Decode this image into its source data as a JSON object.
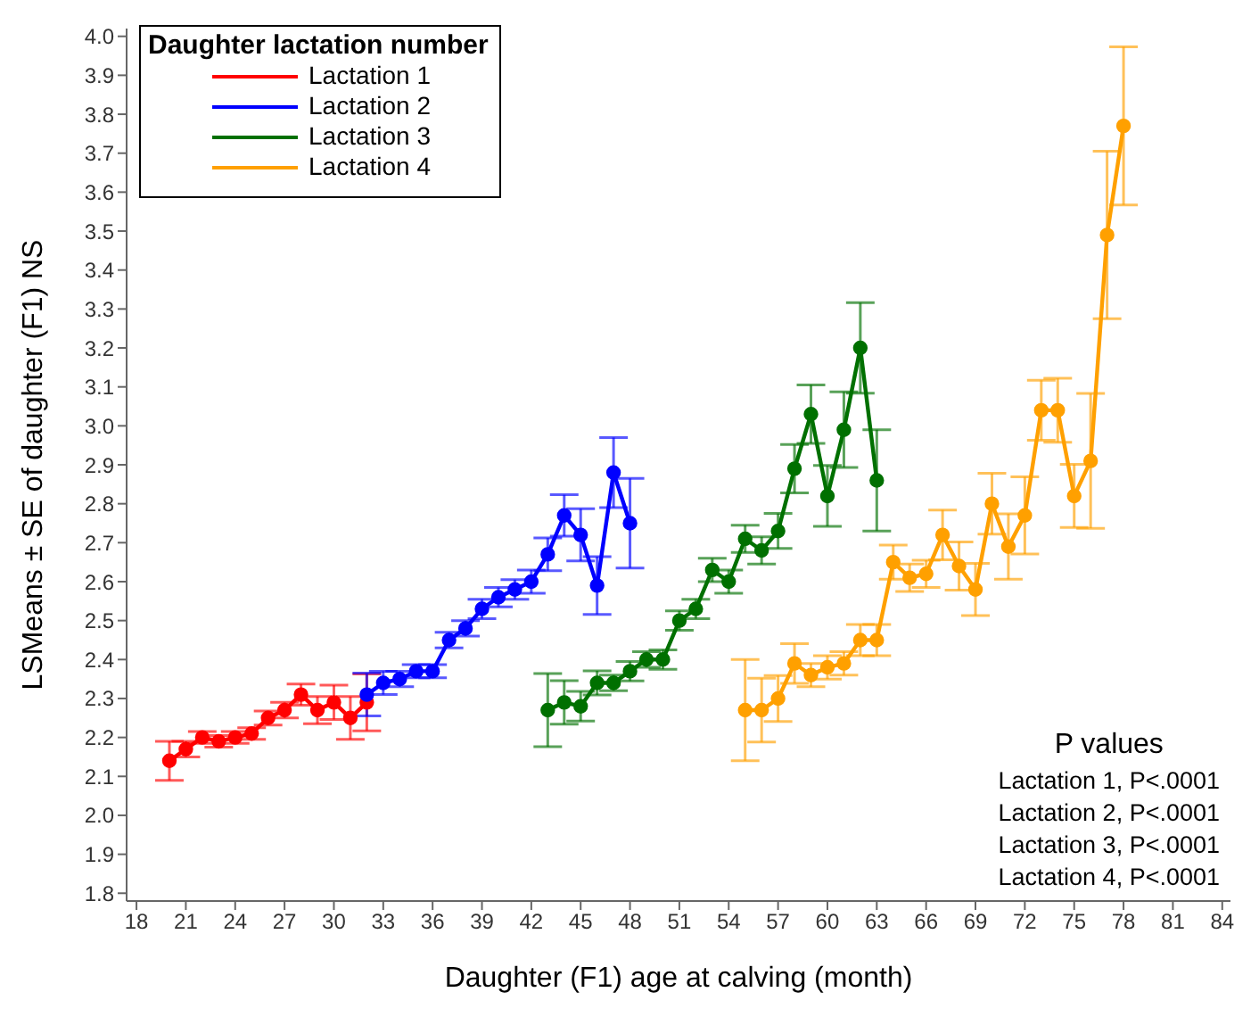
{
  "chart_data": {
    "type": "line",
    "xlabel": "Daughter (F1) age at calving (month)",
    "ylabel": "LSMeans ± SE of daughter (F1) NS",
    "legend_title": "Daughter lactation number",
    "legend": "top left",
    "marker": "circle",
    "line_style": "solid",
    "grid": false,
    "xlim": [
      17.4,
      84.5
    ],
    "xticks": [
      18,
      21,
      24,
      27,
      30,
      33,
      36,
      39,
      42,
      45,
      48,
      51,
      54,
      57,
      60,
      63,
      66,
      69,
      72,
      75,
      78,
      81,
      84
    ],
    "ylim": [
      1.78,
      4.02
    ],
    "yticks": [
      1.8,
      1.9,
      {
        "value": 2,
        "label": "2.0"
      },
      2.1,
      2.2,
      2.3,
      2.4,
      2.5,
      2.6,
      2.7,
      2.8,
      2.9,
      {
        "value": 3,
        "label": "3.0"
      },
      3.1,
      3.2,
      3.3,
      3.4,
      3.5,
      3.6,
      3.7,
      3.8,
      3.9,
      {
        "value": 4,
        "label": "4.0"
      }
    ],
    "series": [
      {
        "name": "Lactation 1",
        "color": "#ff0000",
        "x": [
          20,
          21,
          22,
          23,
          24,
          25,
          26,
          27,
          28,
          29,
          30,
          31,
          32
        ],
        "values": [
          2.14,
          2.17,
          2.2,
          2.19,
          2.2,
          2.21,
          2.25,
          2.27,
          2.31,
          2.27,
          2.29,
          2.25,
          2.29
        ],
        "errors": [
          0.05,
          0.02,
          0.015,
          0.015,
          0.015,
          0.015,
          0.018,
          0.02,
          0.027,
          0.035,
          0.044,
          0.055,
          0.073
        ]
      },
      {
        "name": "Lactation 2",
        "color": "#0000ff",
        "x": [
          32,
          33,
          34,
          35,
          36,
          37,
          38,
          39,
          40,
          41,
          42,
          43,
          44,
          45,
          46,
          47,
          48
        ],
        "values": [
          2.31,
          2.34,
          2.35,
          2.37,
          2.37,
          2.45,
          2.48,
          2.53,
          2.56,
          2.58,
          2.6,
          2.67,
          2.77,
          2.72,
          2.59,
          2.88,
          2.75
        ],
        "errors": [
          0.055,
          0.03,
          0.02,
          0.017,
          0.017,
          0.02,
          0.02,
          0.025,
          0.025,
          0.025,
          0.03,
          0.042,
          0.053,
          0.067,
          0.074,
          0.09,
          0.115
        ]
      },
      {
        "name": "Lactation 3",
        "color": "#007000",
        "x": [
          43,
          44,
          45,
          46,
          47,
          48,
          49,
          50,
          51,
          52,
          53,
          54,
          55,
          56,
          57,
          58,
          59,
          60,
          61,
          62,
          63
        ],
        "values": [
          2.27,
          2.29,
          2.28,
          2.34,
          2.34,
          2.37,
          2.4,
          2.4,
          2.5,
          2.53,
          2.63,
          2.6,
          2.71,
          2.68,
          2.73,
          2.89,
          3.03,
          2.82,
          2.99,
          3.2,
          2.86
        ],
        "errors": [
          0.094,
          0.056,
          0.038,
          0.031,
          0.02,
          0.025,
          0.02,
          0.025,
          0.025,
          0.025,
          0.03,
          0.03,
          0.035,
          0.035,
          0.045,
          0.062,
          0.075,
          0.078,
          0.097,
          0.116,
          0.13
        ]
      },
      {
        "name": "Lactation 4",
        "color": "#ffa000",
        "x": [
          55,
          56,
          57,
          58,
          59,
          60,
          61,
          62,
          63,
          64,
          65,
          66,
          67,
          68,
          69,
          70,
          71,
          72,
          73,
          74,
          75,
          76,
          77,
          78
        ],
        "values": [
          2.27,
          2.27,
          2.3,
          2.39,
          2.36,
          2.38,
          2.39,
          2.45,
          2.45,
          2.65,
          2.61,
          2.62,
          2.72,
          2.64,
          2.58,
          2.8,
          2.69,
          2.77,
          3.04,
          3.04,
          2.82,
          2.91,
          3.49,
          3.77
        ],
        "errors": [
          0.13,
          0.082,
          0.059,
          0.051,
          0.03,
          0.03,
          0.03,
          0.04,
          0.04,
          0.044,
          0.035,
          0.035,
          0.064,
          0.062,
          0.067,
          0.078,
          0.084,
          0.099,
          0.077,
          0.082,
          0.081,
          0.173,
          0.215,
          0.203
        ]
      }
    ],
    "annotations": [
      "P values",
      "Lactation 1, P<.0001",
      "Lactation 2, P<.0001",
      "Lactation 3, P<.0001",
      "Lactation 4, P<.0001"
    ]
  }
}
